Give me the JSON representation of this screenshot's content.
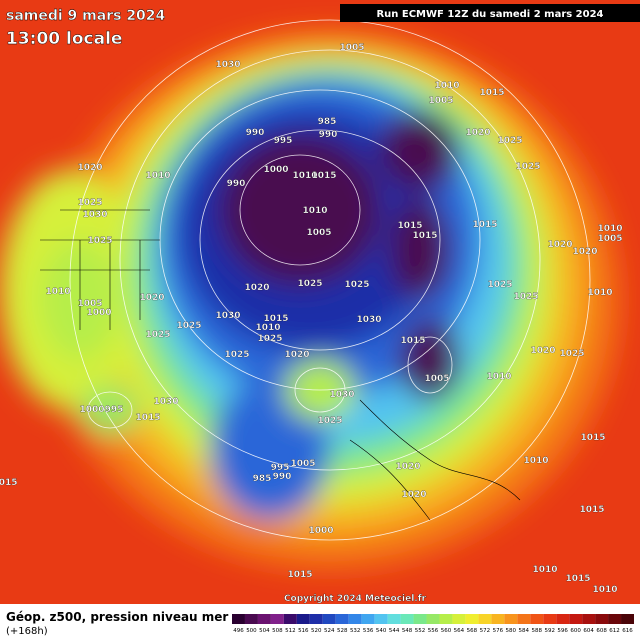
{
  "header": {
    "date": "samedi 9 mars 2024",
    "local_time": "13:00 locale",
    "run": "Run ECMWF 12Z du samedi 2 mars 2024"
  },
  "footer": {
    "title": "Géop. z500, pression niveau mer",
    "subtitle": "(+168h)",
    "copyright": "Copyright 2024 Meteociel.fr"
  },
  "legend": {
    "values": [
      496,
      500,
      504,
      508,
      512,
      516,
      520,
      524,
      528,
      532,
      536,
      540,
      544,
      548,
      552,
      556,
      560,
      564,
      568,
      572,
      576,
      580,
      584,
      588,
      592,
      596,
      600,
      604,
      608,
      612,
      616
    ],
    "colors": [
      "#2a0030",
      "#4a0a50",
      "#6a1270",
      "#80208a",
      "#3a0a6a",
      "#1a1a8a",
      "#1e2ea8",
      "#2048c0",
      "#2a66d8",
      "#3286e8",
      "#40a6f0",
      "#52c4f0",
      "#62dede",
      "#6ae8b8",
      "#7ae88a",
      "#96e866",
      "#b6ee4a",
      "#d6f03a",
      "#f0ee30",
      "#f8d428",
      "#f8b420",
      "#f8941c",
      "#f47418",
      "#f05416",
      "#e83a14",
      "#d82612",
      "#c41810",
      "#a8100e",
      "#8a0a0c",
      "#6a060a",
      "#4a0408"
    ]
  },
  "isobars": [
    "1030",
    "1005",
    "1010",
    "1005",
    "1015",
    "985",
    "990",
    "990",
    "995",
    "1020",
    "1025",
    "1025",
    "1020",
    "1010",
    "990",
    "1000",
    "1010",
    "1015",
    "1025",
    "1030",
    "1010",
    "1005",
    "1015",
    "1015",
    "1015",
    "1025",
    "1020",
    "1010",
    "1005",
    "1020",
    "1010",
    "1005",
    "1000",
    "1020",
    "1020",
    "1025",
    "1025",
    "1025",
    "1025",
    "1010",
    "1030",
    "1025",
    "1015",
    "1010",
    "1030",
    "1025",
    "1025",
    "1020",
    "1025",
    "1015",
    "1020",
    "1025",
    "1005",
    "1010",
    "1030",
    "1030",
    "1000",
    "995",
    "1015",
    "1025",
    "1015",
    "995",
    "1005",
    "990",
    "985",
    "1020",
    "1010",
    "1020",
    "1015",
    "1000",
    "1015",
    "1010",
    "1015",
    "1010",
    "1015"
  ]
}
